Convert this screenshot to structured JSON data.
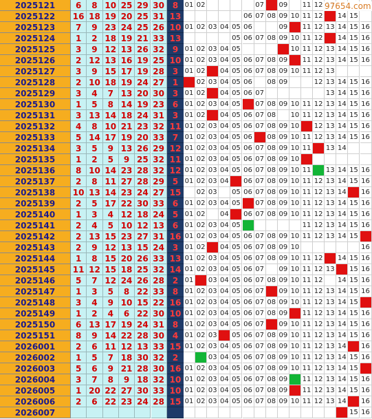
{
  "watermark": "97654.com",
  "rows": [
    {
      "period": "2025121",
      "nums": [
        "6",
        "8",
        "10",
        "25",
        "29",
        "30"
      ],
      "blue": "8",
      "grid": [
        "01",
        "02",
        "",
        "",
        "",
        "",
        "07",
        "",
        "09",
        "",
        "11",
        "12",
        "13",
        "",
        "",
        ""
      ],
      "marks": {
        "8": "red"
      }
    },
    {
      "period": "2025122",
      "nums": [
        "16",
        "18",
        "19",
        "20",
        "25",
        "31"
      ],
      "blue": "13",
      "grid": [
        "",
        "",
        "",
        "",
        "",
        "06",
        "07",
        "08",
        "09",
        "10",
        "11",
        "12",
        "",
        "14",
        "15",
        ""
      ],
      "marks": {
        "13": "red"
      }
    },
    {
      "period": "2025123",
      "nums": [
        "7",
        "9",
        "23",
        "24",
        "25",
        "26"
      ],
      "blue": "10",
      "grid": [
        "01",
        "02",
        "03",
        "04",
        "05",
        "06",
        "",
        "",
        "09",
        "",
        "11",
        "12",
        "13",
        "14",
        "15",
        "16"
      ],
      "marks": {
        "10": "red"
      }
    },
    {
      "period": "2025124",
      "nums": [
        "1",
        "2",
        "18",
        "19",
        "21",
        "33"
      ],
      "blue": "13",
      "grid": [
        "",
        "",
        "",
        "",
        "05",
        "06",
        "07",
        "08",
        "09",
        "10",
        "11",
        "12",
        "",
        "14",
        "15",
        "16"
      ],
      "marks": {
        "13": "red"
      }
    },
    {
      "period": "2025125",
      "nums": [
        "3",
        "9",
        "12",
        "13",
        "26",
        "32"
      ],
      "blue": "9",
      "grid": [
        "01",
        "02",
        "03",
        "04",
        "05",
        "",
        "",
        "",
        "",
        "10",
        "11",
        "12",
        "13",
        "14",
        "15",
        "16"
      ],
      "marks": {
        "9": "red"
      }
    },
    {
      "period": "2025126",
      "nums": [
        "2",
        "12",
        "13",
        "16",
        "19",
        "25"
      ],
      "blue": "10",
      "grid": [
        "01",
        "02",
        "03",
        "04",
        "05",
        "06",
        "07",
        "08",
        "09",
        "",
        "11",
        "12",
        "13",
        "14",
        "15",
        "16"
      ],
      "marks": {
        "10": "red"
      }
    },
    {
      "period": "2025127",
      "nums": [
        "3",
        "9",
        "15",
        "17",
        "19",
        "28"
      ],
      "blue": "3",
      "grid": [
        "01",
        "02",
        "",
        "04",
        "05",
        "06",
        "07",
        "08",
        "09",
        "10",
        "11",
        "12",
        "13",
        "",
        "",
        ""
      ],
      "marks": {
        "3": "red"
      }
    },
    {
      "period": "2025128",
      "nums": [
        "2",
        "10",
        "18",
        "19",
        "24",
        "27"
      ],
      "blue": "1",
      "grid": [
        "",
        "02",
        "03",
        "04",
        "05",
        "06",
        "",
        "08",
        "09",
        "",
        "",
        "12",
        "13",
        "14",
        "15",
        "16"
      ],
      "marks": {
        "1": "red"
      }
    },
    {
      "period": "2025129",
      "nums": [
        "3",
        "4",
        "7",
        "13",
        "20",
        "30"
      ],
      "blue": "3",
      "grid": [
        "01",
        "02",
        "",
        "04",
        "05",
        "06",
        "07",
        "",
        "",
        "",
        "",
        "",
        "13",
        "14",
        "15",
        "16"
      ],
      "marks": {
        "3": "red"
      }
    },
    {
      "period": "2025130",
      "nums": [
        "1",
        "5",
        "8",
        "14",
        "19",
        "23"
      ],
      "blue": "6",
      "grid": [
        "01",
        "02",
        "03",
        "04",
        "05",
        "",
        "07",
        "08",
        "09",
        "10",
        "11",
        "12",
        "13",
        "14",
        "15",
        "16"
      ],
      "marks": {
        "6": "red"
      }
    },
    {
      "period": "2025131",
      "nums": [
        "3",
        "13",
        "14",
        "18",
        "24",
        "31"
      ],
      "blue": "3",
      "grid": [
        "01",
        "02",
        "",
        "04",
        "05",
        "06",
        "07",
        "08",
        "",
        "10",
        "11",
        "12",
        "13",
        "14",
        "15",
        "16"
      ],
      "marks": {
        "3": "red"
      }
    },
    {
      "period": "2025132",
      "nums": [
        "4",
        "8",
        "10",
        "21",
        "23",
        "32"
      ],
      "blue": "11",
      "grid": [
        "01",
        "02",
        "03",
        "04",
        "05",
        "06",
        "07",
        "08",
        "09",
        "10",
        "",
        "12",
        "13",
        "14",
        "15",
        "16"
      ],
      "marks": {
        "11": "red"
      }
    },
    {
      "period": "2025133",
      "nums": [
        "5",
        "14",
        "17",
        "19",
        "20",
        "33"
      ],
      "blue": "7",
      "grid": [
        "01",
        "02",
        "03",
        "04",
        "05",
        "06",
        "",
        "08",
        "09",
        "10",
        "11",
        "12",
        "13",
        "14",
        "15",
        "16"
      ],
      "marks": {
        "7": "red"
      }
    },
    {
      "period": "2025134",
      "nums": [
        "3",
        "5",
        "9",
        "13",
        "26",
        "29"
      ],
      "blue": "12",
      "grid": [
        "01",
        "02",
        "03",
        "04",
        "05",
        "06",
        "07",
        "08",
        "09",
        "10",
        "11",
        "",
        "13",
        "14",
        "",
        ""
      ],
      "marks": {
        "12": "red"
      }
    },
    {
      "period": "2025135",
      "nums": [
        "1",
        "2",
        "5",
        "9",
        "25",
        "32"
      ],
      "blue": "11",
      "grid": [
        "01",
        "02",
        "03",
        "04",
        "05",
        "06",
        "07",
        "08",
        "09",
        "10",
        "",
        "",
        "",
        "",
        "",
        ""
      ],
      "marks": {
        "11": "red"
      }
    },
    {
      "period": "2025136",
      "nums": [
        "8",
        "10",
        "14",
        "23",
        "28",
        "32"
      ],
      "blue": "12",
      "grid": [
        "01",
        "02",
        "03",
        "04",
        "05",
        "06",
        "07",
        "08",
        "09",
        "10",
        "11",
        "",
        "13",
        "14",
        "15",
        "16"
      ],
      "marks": {
        "12": "green"
      }
    },
    {
      "period": "2025137",
      "nums": [
        "2",
        "8",
        "11",
        "27",
        "28",
        "29"
      ],
      "blue": "5",
      "grid": [
        "01",
        "02",
        "03",
        "04",
        "",
        "06",
        "07",
        "08",
        "09",
        "10",
        "11",
        "12",
        "13",
        "14",
        "15",
        "16"
      ],
      "marks": {
        "5": "red"
      }
    },
    {
      "period": "2025138",
      "nums": [
        "10",
        "13",
        "14",
        "23",
        "24",
        "27"
      ],
      "blue": "15",
      "grid": [
        "",
        "02",
        "03",
        "",
        "05",
        "06",
        "07",
        "08",
        "09",
        "10",
        "11",
        "12",
        "13",
        "14",
        "",
        "16"
      ],
      "marks": {
        "15": "red"
      }
    },
    {
      "period": "2025139",
      "nums": [
        "2",
        "5",
        "17",
        "22",
        "30",
        "33"
      ],
      "blue": "6",
      "grid": [
        "01",
        "02",
        "03",
        "04",
        "05",
        "",
        "07",
        "08",
        "09",
        "10",
        "11",
        "12",
        "13",
        "14",
        "15",
        "16"
      ],
      "marks": {
        "6": "red"
      }
    },
    {
      "period": "2025140",
      "nums": [
        "1",
        "3",
        "4",
        "12",
        "18",
        "24"
      ],
      "blue": "5",
      "grid": [
        "01",
        "02",
        "",
        "04",
        "",
        "06",
        "07",
        "08",
        "09",
        "10",
        "11",
        "12",
        "13",
        "14",
        "15",
        "16"
      ],
      "marks": {
        "5": "red"
      }
    },
    {
      "period": "2025141",
      "nums": [
        "2",
        "4",
        "5",
        "10",
        "12",
        "13"
      ],
      "blue": "6",
      "grid": [
        "01",
        "02",
        "03",
        "04",
        "05",
        "",
        "",
        "",
        "",
        "",
        "11",
        "12",
        "13",
        "14",
        "15",
        "16"
      ],
      "marks": {
        "6": "green"
      }
    },
    {
      "period": "2025142",
      "nums": [
        "2",
        "13",
        "15",
        "23",
        "27",
        "31"
      ],
      "blue": "16",
      "grid": [
        "01",
        "02",
        "03",
        "04",
        "05",
        "06",
        "07",
        "08",
        "09",
        "10",
        "11",
        "12",
        "13",
        "14",
        "15",
        ""
      ],
      "marks": {
        "16": "red"
      }
    },
    {
      "period": "2025143",
      "nums": [
        "2",
        "9",
        "12",
        "13",
        "15",
        "24"
      ],
      "blue": "3",
      "grid": [
        "01",
        "02",
        "",
        "04",
        "05",
        "06",
        "07",
        "08",
        "09",
        "10",
        "",
        "",
        "",
        "",
        "",
        "16"
      ],
      "marks": {
        "3": "red"
      }
    },
    {
      "period": "2025144",
      "nums": [
        "1",
        "8",
        "15",
        "20",
        "26",
        "33"
      ],
      "blue": "13",
      "grid": [
        "01",
        "02",
        "03",
        "04",
        "05",
        "06",
        "07",
        "08",
        "09",
        "10",
        "11",
        "12",
        "",
        "14",
        "15",
        "16"
      ],
      "marks": {
        "13": "red"
      }
    },
    {
      "period": "2025145",
      "nums": [
        "11",
        "12",
        "15",
        "18",
        "25",
        "32"
      ],
      "blue": "14",
      "grid": [
        "01",
        "02",
        "03",
        "04",
        "05",
        "06",
        "07",
        "",
        "09",
        "10",
        "11",
        "12",
        "13",
        "",
        "15",
        "16"
      ],
      "marks": {
        "14": "red"
      }
    },
    {
      "period": "2025146",
      "nums": [
        "5",
        "7",
        "12",
        "24",
        "26",
        "28"
      ],
      "blue": "2",
      "grid": [
        "01",
        "",
        "03",
        "04",
        "05",
        "06",
        "07",
        "08",
        "09",
        "10",
        "11",
        "12",
        "",
        "14",
        "15",
        "16"
      ],
      "marks": {
        "2": "red"
      }
    },
    {
      "period": "2025147",
      "nums": [
        "1",
        "3",
        "5",
        "8",
        "22",
        "33"
      ],
      "blue": "8",
      "grid": [
        "01",
        "02",
        "03",
        "04",
        "05",
        "06",
        "07",
        "",
        "09",
        "10",
        "11",
        "12",
        "13",
        "14",
        "15",
        "16"
      ],
      "marks": {
        "8": "red"
      }
    },
    {
      "period": "2025148",
      "nums": [
        "3",
        "4",
        "9",
        "10",
        "15",
        "22"
      ],
      "blue": "16",
      "grid": [
        "01",
        "02",
        "03",
        "04",
        "05",
        "06",
        "07",
        "08",
        "09",
        "10",
        "11",
        "12",
        "13",
        "14",
        "15",
        ""
      ],
      "marks": {
        "16": "red"
      }
    },
    {
      "period": "2025149",
      "nums": [
        "1",
        "2",
        "4",
        "6",
        "22",
        "30"
      ],
      "blue": "10",
      "grid": [
        "01",
        "02",
        "03",
        "04",
        "05",
        "06",
        "07",
        "08",
        "09",
        "",
        "11",
        "12",
        "13",
        "14",
        "15",
        "16"
      ],
      "marks": {
        "10": "red"
      }
    },
    {
      "period": "2025150",
      "nums": [
        "6",
        "13",
        "17",
        "19",
        "24",
        "31"
      ],
      "blue": "8",
      "grid": [
        "01",
        "02",
        "03",
        "04",
        "05",
        "06",
        "07",
        "",
        "09",
        "10",
        "11",
        "12",
        "13",
        "14",
        "15",
        "16"
      ],
      "marks": {
        "8": "red"
      }
    },
    {
      "period": "2025151",
      "nums": [
        "8",
        "9",
        "14",
        "22",
        "28",
        "30"
      ],
      "blue": "4",
      "grid": [
        "01",
        "02",
        "03",
        "",
        "05",
        "06",
        "07",
        "08",
        "09",
        "10",
        "11",
        "12",
        "13",
        "14",
        "15",
        "16"
      ],
      "marks": {
        "4": "red"
      }
    },
    {
      "period": "2026001",
      "nums": [
        "2",
        "6",
        "11",
        "12",
        "13",
        "33"
      ],
      "blue": "15",
      "grid": [
        "01",
        "02",
        "03",
        "04",
        "05",
        "06",
        "07",
        "08",
        "09",
        "10",
        "11",
        "12",
        "13",
        "14",
        "",
        "16"
      ],
      "marks": {
        "15": "red"
      }
    },
    {
      "period": "2026002",
      "nums": [
        "1",
        "5",
        "7",
        "18",
        "30",
        "32"
      ],
      "blue": "2",
      "grid": [
        "",
        "",
        "03",
        "04",
        "05",
        "06",
        "07",
        "08",
        "09",
        "10",
        "11",
        "12",
        "13",
        "14",
        "15",
        "16"
      ],
      "marks": {
        "2": "green"
      }
    },
    {
      "period": "2026003",
      "nums": [
        "5",
        "6",
        "9",
        "21",
        "28",
        "30"
      ],
      "blue": "16",
      "grid": [
        "01",
        "02",
        "03",
        "04",
        "05",
        "06",
        "07",
        "08",
        "09",
        "10",
        "11",
        "12",
        "13",
        "14",
        "15",
        ""
      ],
      "marks": {
        "16": "red"
      }
    },
    {
      "period": "2026004",
      "nums": [
        "3",
        "7",
        "8",
        "9",
        "18",
        "32"
      ],
      "blue": "10",
      "grid": [
        "01",
        "02",
        "03",
        "04",
        "05",
        "06",
        "07",
        "08",
        "09",
        "",
        "11",
        "12",
        "13",
        "14",
        "15",
        "16"
      ],
      "marks": {
        "10": "green"
      }
    },
    {
      "period": "2026005",
      "nums": [
        "1",
        "20",
        "22",
        "27",
        "30",
        "33"
      ],
      "blue": "10",
      "grid": [
        "01",
        "02",
        "03",
        "04",
        "05",
        "06",
        "07",
        "08",
        "09",
        "",
        "11",
        "12",
        "13",
        "14",
        "15",
        "16"
      ],
      "marks": {
        "10": "red"
      }
    },
    {
      "period": "2026006",
      "nums": [
        "2",
        "6",
        "22",
        "23",
        "24",
        "28"
      ],
      "blue": "15",
      "grid": [
        "01",
        "02",
        "03",
        "04",
        "05",
        "06",
        "07",
        "08",
        "09",
        "10",
        "11",
        "12",
        "13",
        "14",
        "",
        "16"
      ],
      "marks": {
        "15": "red"
      }
    },
    {
      "period": "2026007",
      "nums": [
        "",
        "",
        "",
        "",
        "",
        ""
      ],
      "blue": "",
      "grid": [
        "",
        "",
        "",
        "",
        "",
        "",
        "",
        "",
        "",
        "",
        "",
        "",
        "",
        "",
        "15",
        "16"
      ],
      "marks": {
        "14": "red"
      }
    }
  ]
}
